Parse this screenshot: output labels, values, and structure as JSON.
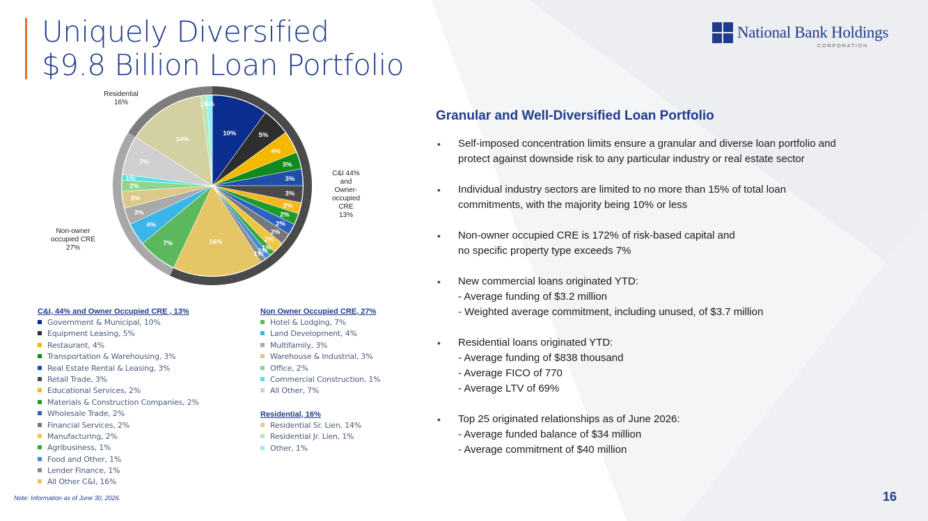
{
  "header": {
    "title_line1": "Uniquely Diversified",
    "title_line2": "$9.8 Billion Loan Portfolio"
  },
  "logo": {
    "name": "National Bank Holdings",
    "sub": "CORPORATION"
  },
  "colors": {
    "brand": "#1f3c8c",
    "accent": "#e8702a"
  },
  "chart_data": {
    "type": "pie",
    "start_angle": "top",
    "direction": "clockwise",
    "slices": [
      {
        "label": "Government & Municipal",
        "value": 10,
        "color": "#0b2d8f"
      },
      {
        "label": "Equipment Leasing",
        "value": 5,
        "color": "#2e2e2e"
      },
      {
        "label": "Restaurant",
        "value": 4,
        "color": "#f5b800"
      },
      {
        "label": "Transportation & Warehousing",
        "value": 3,
        "color": "#138a1e"
      },
      {
        "label": "Real Estate Rental & Leasing",
        "value": 3,
        "color": "#1f4fa8"
      },
      {
        "label": "Retail Trade",
        "value": 3,
        "color": "#4a4a4a"
      },
      {
        "label": "Educational Services",
        "value": 2,
        "color": "#f5b820"
      },
      {
        "label": "Materials & Construction Companies",
        "value": 2,
        "color": "#1e9a2b"
      },
      {
        "label": "Wholesale Trade",
        "value": 2,
        "color": "#2a62c4"
      },
      {
        "label": "Financial Services",
        "value": 2,
        "color": "#777777"
      },
      {
        "label": "Manufacturing",
        "value": 2,
        "color": "#f0c540"
      },
      {
        "label": "Agribusiness",
        "value": 1,
        "color": "#3aa63a"
      },
      {
        "label": "Food and Other",
        "value": 1,
        "color": "#3d8ed6"
      },
      {
        "label": "Lender Finance",
        "value": 1,
        "color": "#8c8c8c"
      },
      {
        "label": "All Other C&I",
        "value": 16,
        "color": "#e5c565"
      },
      {
        "label": "Hotel & Lodging",
        "value": 7,
        "color": "#5cb85c"
      },
      {
        "label": "Land Development",
        "value": 4,
        "color": "#3bb6e8"
      },
      {
        "label": "Multifamily",
        "value": 3,
        "color": "#a9a9a9"
      },
      {
        "label": "Warehouse & Industrial",
        "value": 3,
        "color": "#dcc88a"
      },
      {
        "label": "Office",
        "value": 2,
        "color": "#8fd68a"
      },
      {
        "label": "Commercial Construction",
        "value": 1,
        "color": "#4fe0ea"
      },
      {
        "label": "All Other",
        "value": 7,
        "color": "#cfcfcf"
      },
      {
        "label": "Residential Sr. Lien",
        "value": 14,
        "color": "#d3d0a2"
      },
      {
        "label": "Residential Jr. Lien",
        "value": 1,
        "color": "#b9e6b3"
      },
      {
        "label": "Other",
        "value": 1,
        "color": "#8ff2f5"
      }
    ],
    "groups": [
      {
        "label": "C&I 44% and Owner-occupied CRE 13%",
        "start": 0,
        "end": 15,
        "color": "#4a4a4a"
      },
      {
        "label": "Non-owner occupied CRE 27%",
        "start": 15,
        "end": 22,
        "color": "#a8a8a8"
      },
      {
        "label": "Residential 16%",
        "start": 22,
        "end": 25,
        "color": "#7d7d7d"
      }
    ],
    "slice_labels": [
      "10%",
      "5%",
      "4%",
      "3%",
      "3%",
      "3%",
      "2%",
      "2%",
      "2%",
      "2%",
      "2%",
      "1%",
      "1%",
      "1%",
      "16%",
      "7%",
      "4%",
      "3%",
      "3%",
      "2%",
      "1%",
      "7%",
      "14%",
      "1%",
      "1%"
    ],
    "outer_labels": {
      "ci": [
        "C&I 44%",
        "and",
        "Owner-",
        "occupied",
        "CRE",
        "13%"
      ],
      "non_owner": [
        "Non-owner",
        "occupied CRE",
        "27%"
      ],
      "residential": [
        "Residential",
        "16%"
      ]
    }
  },
  "legend": {
    "col1": {
      "title": "C&I, 44% and Owner Occupied CRE , 13%",
      "items": [
        {
          "text": "Government & Municipal, 10%",
          "color": "#0b2d8f"
        },
        {
          "text": "Equipment Leasing, 5%",
          "color": "#2e2e2e"
        },
        {
          "text": "Restaurant, 4%",
          "color": "#f5b800"
        },
        {
          "text": "Transportation & Warehousing, 3%",
          "color": "#138a1e"
        },
        {
          "text": "Real Estate Rental & Leasing, 3%",
          "color": "#1f4fa8"
        },
        {
          "text": "Retail Trade, 3%",
          "color": "#4a4a4a"
        },
        {
          "text": "Educational Services, 2%",
          "color": "#f5b820"
        },
        {
          "text": "Materials & Construction Companies, 2%",
          "color": "#1e9a2b"
        },
        {
          "text": "Wholesale Trade, 2%",
          "color": "#2a62c4"
        },
        {
          "text": "Financial Services, 2%",
          "color": "#777777"
        },
        {
          "text": "Manufacturing, 2%",
          "color": "#f0c540"
        },
        {
          "text": "Agribusiness, 1%",
          "color": "#3aa63a"
        },
        {
          "text": "Food and Other, 1%",
          "color": "#3d8ed6"
        },
        {
          "text": "Lender Finance, 1%",
          "color": "#8c8c8c"
        },
        {
          "text": "All Other C&I, 16%",
          "color": "#e5c565"
        }
      ]
    },
    "col2": {
      "title": "Non Owner Occupied CRE, 27%",
      "items": [
        {
          "text": "Hotel & Lodging, 7%",
          "color": "#5cb85c"
        },
        {
          "text": "Land Development, 4%",
          "color": "#3bb6e8"
        },
        {
          "text": "Multifamily, 3%",
          "color": "#a9a9a9"
        },
        {
          "text": "Warehouse & Industrial, 3%",
          "color": "#dcc88a"
        },
        {
          "text": "Office, 2%",
          "color": "#8fd68a"
        },
        {
          "text": "Commercial Construction, 1%",
          "color": "#4fe0ea"
        },
        {
          "text": "All Other, 7%",
          "color": "#cfcfcf"
        }
      ],
      "title2": "Residential, 16%",
      "items2": [
        {
          "text": "Residential Sr. Lien, 14%",
          "color": "#d3d0a2"
        },
        {
          "text": "Residential Jr. Lien, 1%",
          "color": "#b9e6b3"
        },
        {
          "text": "Other, 1%",
          "color": "#8ff2f5"
        }
      ]
    }
  },
  "panel": {
    "title": "Granular and Well-Diversified Loan Portfolio",
    "bullets": [
      {
        "lines": [
          "Self-imposed concentration limits ensure a granular and diverse loan portfolio and",
          "protect against downside risk to any particular industry or real estate sector"
        ],
        "subs": []
      },
      {
        "lines": [
          "Individual industry sectors are limited to no more than 15% of total loan",
          "commitments, with the majority being 10% or less"
        ],
        "subs": []
      },
      {
        "lines": [
          "Non-owner occupied CRE is 172% of risk-based capital and",
          "no specific property type exceeds 7%"
        ],
        "subs": []
      },
      {
        "lines": [
          "New commercial loans originated YTD:"
        ],
        "subs": [
          "-  Average funding of $3.2 million",
          "-  Weighted average commitment, including unused, of $3.7 million"
        ]
      },
      {
        "lines": [
          "Residential loans originated YTD:"
        ],
        "subs": [
          "-  Average funding of $838 thousand",
          "-  Average FICO of 770",
          "-  Average LTV of 69%"
        ]
      },
      {
        "lines": [
          "Top 25 originated relationships as of June 2026:"
        ],
        "subs": [
          "-  Average funded balance of $34 million",
          "-  Average commitment of $40 million"
        ]
      }
    ]
  },
  "footer": {
    "note": "Note: Information as of June 30, 2026.",
    "page": "16"
  }
}
